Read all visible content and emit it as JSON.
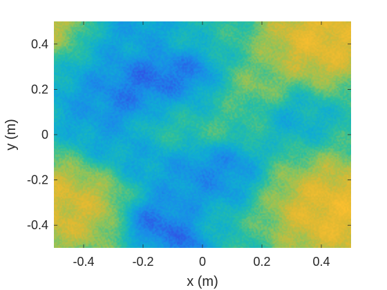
{
  "chart_data": {
    "type": "heatmap",
    "title": "",
    "xlabel": "x (m)",
    "ylabel": "y (m)",
    "xlim": [
      -0.5,
      0.5
    ],
    "ylim": [
      -0.5,
      0.5
    ],
    "xticks": [
      -0.4,
      -0.2,
      0,
      0.2,
      0.4
    ],
    "xtick_labels": [
      "-0.4",
      "-0.2",
      "0",
      "0.2",
      "0.4"
    ],
    "yticks": [
      -0.4,
      -0.2,
      0,
      0.2,
      0.4
    ],
    "ytick_labels": [
      "-0.4",
      "-0.2",
      "0",
      "0.2",
      "0.4"
    ],
    "grid": false,
    "colormap": "parula",
    "colormap_stops": [
      "#3e26a8",
      "#2f55e6",
      "#1a8ce9",
      "#0faed2",
      "#2ac09f",
      "#8fc45a",
      "#dcb933",
      "#fdbf2f",
      "#f9e32a"
    ],
    "background_level": 0.45,
    "features": [
      {
        "x": -0.47,
        "y": 0.47,
        "level": 0.82,
        "spread": 0.07
      },
      {
        "x": 0.41,
        "y": 0.43,
        "level": 0.9,
        "spread": 0.12
      },
      {
        "x": 0.2,
        "y": 0.2,
        "level": 0.65,
        "spread": 0.06
      },
      {
        "x": -0.48,
        "y": -0.32,
        "level": 0.85,
        "spread": 0.12
      },
      {
        "x": 0.46,
        "y": -0.34,
        "level": 0.92,
        "spread": 0.13
      },
      {
        "x": -0.1,
        "y": 0.05,
        "level": 0.58,
        "spread": 0.08
      },
      {
        "x": 0.1,
        "y": 0.0,
        "level": 0.55,
        "spread": 0.08
      },
      {
        "x": -0.32,
        "y": 0.42,
        "level": 0.3,
        "spread": 0.09
      },
      {
        "x": -0.2,
        "y": 0.25,
        "level": 0.12,
        "spread": 0.06
      },
      {
        "x": -0.13,
        "y": 0.22,
        "level": 0.12,
        "spread": 0.06
      },
      {
        "x": -0.25,
        "y": 0.13,
        "level": 0.15,
        "spread": 0.05
      },
      {
        "x": -0.05,
        "y": 0.28,
        "level": 0.18,
        "spread": 0.05
      },
      {
        "x": -0.32,
        "y": 0.18,
        "level": 0.22,
        "spread": 0.07
      },
      {
        "x": -0.1,
        "y": 0.12,
        "level": 0.28,
        "spread": 0.07
      },
      {
        "x": -0.3,
        "y": 0.0,
        "level": 0.3,
        "spread": 0.08
      },
      {
        "x": 0.0,
        "y": -0.15,
        "level": 0.2,
        "spread": 0.06
      },
      {
        "x": 0.1,
        "y": -0.1,
        "level": 0.15,
        "spread": 0.05
      },
      {
        "x": 0.05,
        "y": -0.2,
        "level": 0.25,
        "spread": 0.07
      },
      {
        "x": -0.15,
        "y": -0.12,
        "level": 0.3,
        "spread": 0.07
      },
      {
        "x": -0.18,
        "y": -0.38,
        "level": 0.15,
        "spread": 0.05
      },
      {
        "x": -0.12,
        "y": -0.42,
        "level": 0.12,
        "spread": 0.05
      },
      {
        "x": -0.05,
        "y": -0.48,
        "level": 0.15,
        "spread": 0.04
      },
      {
        "x": -0.1,
        "y": -0.3,
        "level": 0.25,
        "spread": 0.06
      },
      {
        "x": 0.3,
        "y": 0.08,
        "level": 0.35,
        "spread": 0.07
      },
      {
        "x": -0.4,
        "y": 0.1,
        "level": 0.3,
        "spread": 0.06
      },
      {
        "x": -0.18,
        "y": 0.45,
        "level": 0.3,
        "spread": 0.06
      }
    ]
  }
}
